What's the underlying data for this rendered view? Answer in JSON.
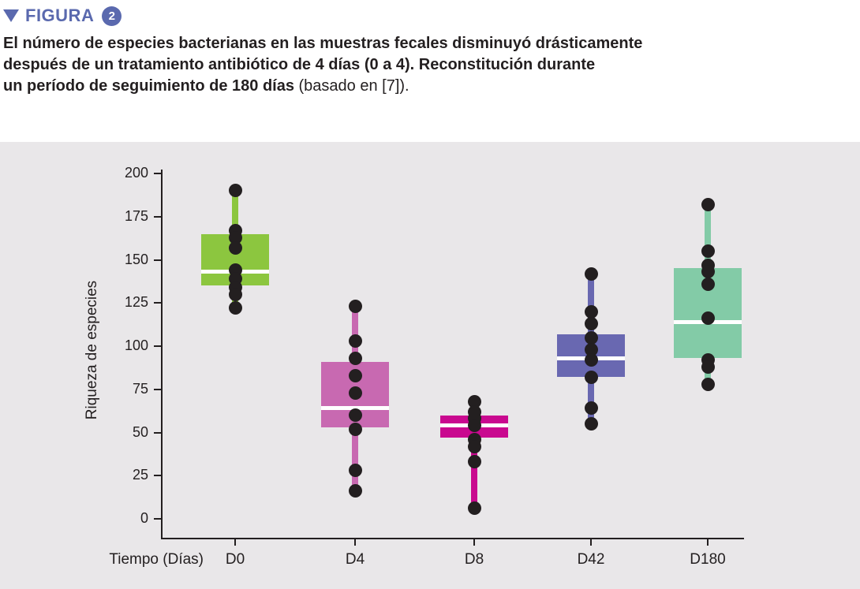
{
  "header": {
    "label": "FIGURA",
    "number": "2"
  },
  "caption": {
    "line1": "El número de especies bacterianas en las muestras fecales disminuyó drásticamente",
    "line2": "después de un tratamiento antibiótico de 4 días (0 a 4). Reconstitución durante",
    "line3_bold": "un período de seguimiento de 180 días",
    "line3_normal": " (basado en [7])."
  },
  "colors": {
    "accent_blue": "#5A69AE",
    "panel_background": "#E9E7E9",
    "ink": "#231F20",
    "median_line": "#FFFFFF"
  },
  "chart_data": {
    "type": "boxplot",
    "title": "",
    "xlabel": "Tiempo (Días)",
    "ylabel": "Riqueza de especies",
    "grid": false,
    "legend": false,
    "y_axis": {
      "min": 0,
      "max": 200,
      "ticks": [
        0,
        25,
        50,
        75,
        100,
        125,
        150,
        175,
        200
      ]
    },
    "categories": [
      "D0",
      "D4",
      "D8",
      "D42",
      "D180"
    ],
    "groups": [
      {
        "label": "D0",
        "color": "#8CC63F",
        "q1": 135,
        "median": 143,
        "q3": 165,
        "whisker_low": 122,
        "whisker_high": 190,
        "points": [
          190,
          167,
          163,
          157,
          144,
          139,
          134,
          130,
          122
        ]
      },
      {
        "label": "D4",
        "color": "#C869B1",
        "q1": 53,
        "median": 64,
        "q3": 91,
        "whisker_low": 16,
        "whisker_high": 123,
        "points": [
          123,
          103,
          93,
          83,
          73,
          60,
          52,
          28,
          16
        ]
      },
      {
        "label": "D8",
        "color": "#C9098F",
        "q1": 47,
        "median": 54,
        "q3": 60,
        "whisker_low": 6,
        "whisker_high": 68,
        "points": [
          68,
          62,
          58,
          54,
          46,
          42,
          33,
          6
        ]
      },
      {
        "label": "D42",
        "color": "#6968B1",
        "q1": 82,
        "median": 93,
        "q3": 107,
        "whisker_low": 55,
        "whisker_high": 142,
        "points": [
          142,
          120,
          113,
          105,
          98,
          92,
          82,
          64,
          55
        ]
      },
      {
        "label": "D180",
        "color": "#83CBA7",
        "q1": 93,
        "median": 114,
        "q3": 145,
        "whisker_low": 78,
        "whisker_high": 182,
        "points": [
          182,
          155,
          147,
          143,
          136,
          116,
          92,
          88,
          78
        ]
      }
    ]
  }
}
